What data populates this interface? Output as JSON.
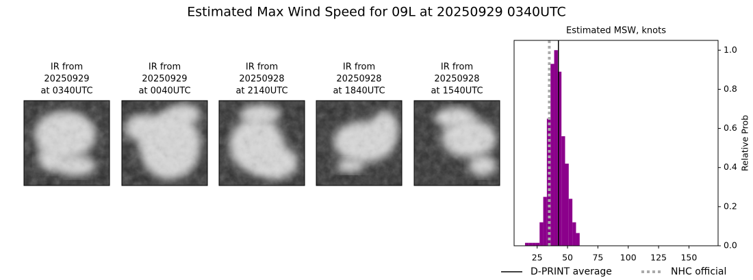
{
  "title": "Estimated Max Wind Speed for 09L at 20250929 0340UTC",
  "panels": [
    {
      "lines": [
        "IR from",
        "20250929",
        "at 0340UTC"
      ]
    },
    {
      "lines": [
        "IR from",
        "20250929",
        "at 0040UTC"
      ]
    },
    {
      "lines": [
        "IR from",
        "20250928",
        "at 2140UTC"
      ]
    },
    {
      "lines": [
        "IR from",
        "20250928",
        "at 1840UTC"
      ]
    },
    {
      "lines": [
        "IR from",
        "20250928",
        "at 1540UTC"
      ]
    }
  ],
  "chart_data": {
    "type": "histogram",
    "title": "Estimated MSW, knots",
    "y_label": "Relative Prob",
    "bins": [
      15,
      18,
      21,
      24,
      27,
      30,
      33,
      36,
      39,
      42,
      45,
      48,
      51,
      54,
      57,
      60
    ],
    "values": [
      0.015,
      0.015,
      0.015,
      0.015,
      0.12,
      0.25,
      0.65,
      0.93,
      1.0,
      0.89,
      0.56,
      0.42,
      0.24,
      0.12,
      0.065
    ],
    "color": "#8b008b",
    "xlim": [
      6,
      174
    ],
    "ylim": [
      0,
      1.05
    ],
    "xticks": [
      25,
      50,
      75,
      100,
      125,
      150
    ],
    "yticks": [
      {
        "value": 0,
        "label": "0.0"
      },
      0.2,
      0.4,
      0.6,
      0.8,
      {
        "value": 1,
        "label": "1.0"
      }
    ],
    "lines": [
      {
        "name": "D-PRINT average",
        "x": 42.5,
        "color": "#000000",
        "style": "solid"
      },
      {
        "name": "NHC official",
        "x": 35,
        "color": "#aaaaaa",
        "style": "dotted"
      }
    ]
  }
}
